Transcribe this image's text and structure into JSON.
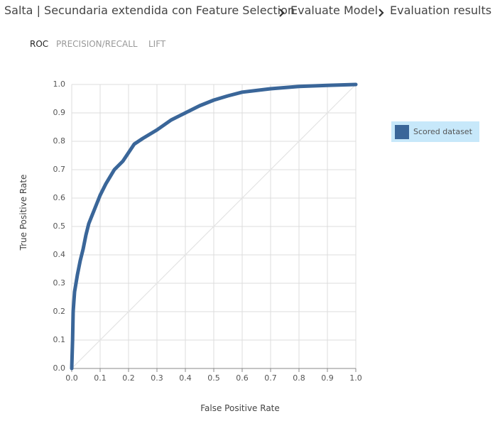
{
  "breadcrumb": [
    "Salta | Secundaria extendida con Feature Selection",
    "Evaluate Model",
    "Evaluation results"
  ],
  "tabs": [
    "ROC",
    "PRECISION/RECALL",
    "LIFT"
  ],
  "chart_data": {
    "type": "line",
    "xlabel": "False Positive Rate",
    "ylabel": "True Positive Rate",
    "x": [
      0,
      0.003,
      0.005,
      0.01,
      0.02,
      0.03,
      0.04,
      0.05,
      0.06,
      0.08,
      0.1,
      0.12,
      0.15,
      0.18,
      0.2,
      0.22,
      0.25,
      0.3,
      0.35,
      0.4,
      0.45,
      0.5,
      0.55,
      0.6,
      0.7,
      0.8,
      0.9,
      1.0
    ],
    "series": [
      {
        "name": "Scored dataset",
        "color": "#3a6699",
        "values": [
          0,
          0.1,
          0.2,
          0.27,
          0.33,
          0.38,
          0.42,
          0.47,
          0.51,
          0.56,
          0.61,
          0.65,
          0.7,
          0.73,
          0.76,
          0.79,
          0.81,
          0.84,
          0.875,
          0.9,
          0.925,
          0.945,
          0.96,
          0.973,
          0.985,
          0.993,
          0.997,
          1.0
        ]
      }
    ],
    "xlim": [
      0,
      1
    ],
    "ylim": [
      0,
      1
    ],
    "xticks": [
      {
        "value": 0,
        "label": "0.0"
      },
      0.1,
      0.2,
      0.3,
      0.4,
      0.5,
      0.6,
      0.7,
      0.8,
      0.9,
      {
        "value": 1,
        "label": "1.0"
      }
    ],
    "yticks": [
      {
        "value": 0,
        "label": "0.0"
      },
      0.1,
      0.2,
      0.3,
      0.4,
      0.5,
      0.6,
      0.7,
      0.8,
      0.9,
      {
        "value": 1,
        "label": "1.0"
      }
    ],
    "grid": true,
    "legend": "right"
  }
}
